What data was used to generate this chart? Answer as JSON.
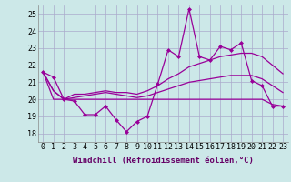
{
  "xlabel": "Windchill (Refroidissement éolien,°C)",
  "x": [
    0,
    1,
    2,
    3,
    4,
    5,
    6,
    7,
    8,
    9,
    10,
    11,
    12,
    13,
    14,
    15,
    16,
    17,
    18,
    19,
    20,
    21,
    22,
    23
  ],
  "line1": [
    21.6,
    21.3,
    20.0,
    19.9,
    19.1,
    19.1,
    19.6,
    18.8,
    18.1,
    18.7,
    19.0,
    20.9,
    22.9,
    22.5,
    25.3,
    22.5,
    22.3,
    23.1,
    22.9,
    23.3,
    21.1,
    20.8,
    19.6,
    19.6
  ],
  "line2": [
    21.6,
    20.5,
    20.0,
    20.3,
    20.3,
    20.4,
    20.5,
    20.4,
    20.4,
    20.3,
    20.5,
    20.8,
    21.2,
    21.5,
    21.9,
    22.1,
    22.3,
    22.5,
    22.6,
    22.7,
    22.7,
    22.5,
    22.0,
    21.5
  ],
  "line3": [
    21.6,
    20.5,
    20.0,
    20.1,
    20.2,
    20.3,
    20.4,
    20.3,
    20.2,
    20.1,
    20.2,
    20.4,
    20.6,
    20.8,
    21.0,
    21.1,
    21.2,
    21.3,
    21.4,
    21.4,
    21.4,
    21.2,
    20.8,
    20.4
  ],
  "line4": [
    21.6,
    20.0,
    20.0,
    20.0,
    20.0,
    20.0,
    20.0,
    20.0,
    20.0,
    20.0,
    20.0,
    20.0,
    20.0,
    20.0,
    20.0,
    20.0,
    20.0,
    20.0,
    20.0,
    20.0,
    20.0,
    20.0,
    19.7,
    19.6
  ],
  "line_color": "#990099",
  "bg_color": "#cce8e8",
  "grid_color": "#aaaacc",
  "ylim": [
    17.5,
    25.5
  ],
  "yticks": [
    18,
    19,
    20,
    21,
    22,
    23,
    24,
    25
  ],
  "xticks": [
    0,
    1,
    2,
    3,
    4,
    5,
    6,
    7,
    8,
    9,
    10,
    11,
    12,
    13,
    14,
    15,
    16,
    17,
    18,
    19,
    20,
    21,
    22,
    23
  ],
  "marker": "D",
  "marker_size": 2.0,
  "linewidth": 0.9,
  "xlabel_fontsize": 6.5,
  "tick_fontsize": 6.0
}
